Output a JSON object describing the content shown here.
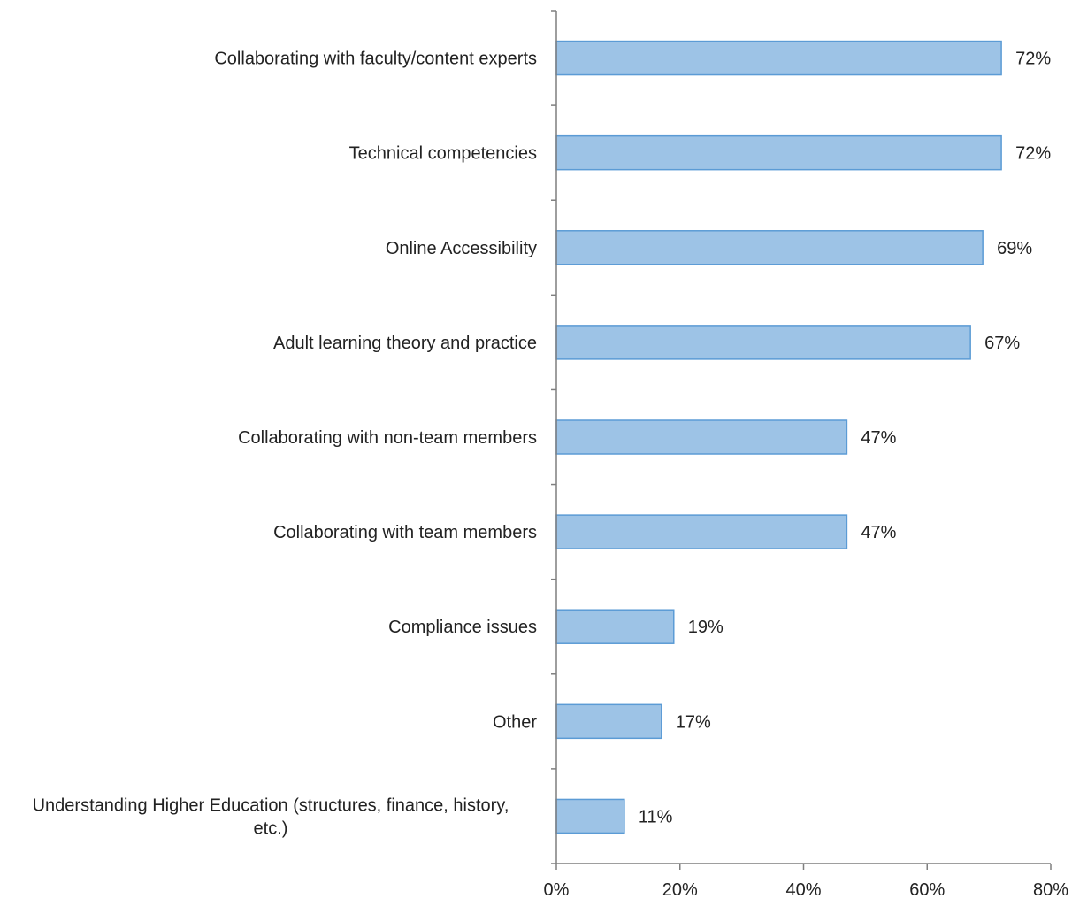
{
  "chart_data": {
    "type": "bar",
    "orientation": "horizontal",
    "title": "",
    "xlabel": "",
    "ylabel": "",
    "categories": [
      "Collaborating with faculty/content experts",
      "Technical competencies",
      "Online Accessibility",
      "Adult learning theory and practice",
      "Collaborating with non-team members",
      "Collaborating with team members",
      "Compliance issues",
      "Other",
      "Understanding Higher Education (structures, finance, history, etc.)"
    ],
    "category_lines": [
      [
        "Collaborating with faculty/content experts"
      ],
      [
        "Technical competencies"
      ],
      [
        "Online Accessibility"
      ],
      [
        "Adult learning theory and practice"
      ],
      [
        "Collaborating with non-team members"
      ],
      [
        "Collaborating with team members"
      ],
      [
        "Compliance issues"
      ],
      [
        "Other"
      ],
      [
        "Understanding Higher Education (structures, finance, history,",
        "etc.)"
      ]
    ],
    "values": [
      72,
      72,
      69,
      67,
      47,
      47,
      19,
      17,
      11
    ],
    "value_labels": [
      "72%",
      "72%",
      "69%",
      "67%",
      "47%",
      "47%",
      "19%",
      "17%",
      "11%"
    ],
    "xlim": [
      0,
      80
    ],
    "x_ticks": [
      0,
      20,
      40,
      60,
      80
    ],
    "x_tick_labels": [
      "0%",
      "20%",
      "40%",
      "60%",
      "80%"
    ],
    "grid": false,
    "legend": "none",
    "colors": {
      "bar_fill": "#9dc3e6",
      "bar_stroke": "#5b9bd5",
      "axis": "#7f7f7f",
      "text": "#222222"
    }
  }
}
